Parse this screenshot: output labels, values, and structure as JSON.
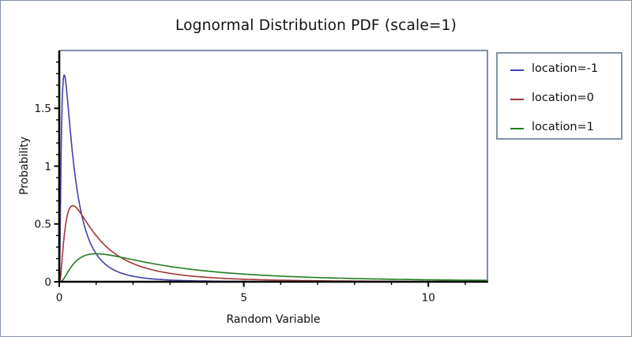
{
  "chart_data": {
    "type": "line",
    "title": "Lognormal Distribution PDF (scale=1)",
    "xlabel": "Random Variable",
    "ylabel": "Probability",
    "xlim": [
      0,
      11.6
    ],
    "ylim": [
      0,
      2
    ],
    "grid": false,
    "legend_position": "outside-right",
    "distribution": "lognormal_pdf",
    "scale_sigma": 1,
    "x_major_ticks": [
      {
        "value": 0,
        "label": "0"
      },
      {
        "value": 5,
        "label": "5"
      },
      {
        "value": 10,
        "label": "10"
      }
    ],
    "x_minor_tick_step": 1,
    "y_major_ticks": [
      {
        "value": 0,
        "label": "0"
      },
      {
        "value": 0.5,
        "label": "0.5"
      },
      {
        "value": 1,
        "label": "1"
      },
      {
        "value": 1.5,
        "label": "1.5"
      }
    ],
    "y_minor_tick_step": 0.1,
    "series": [
      {
        "label": "location=-1",
        "location": -1,
        "sigma": 1,
        "color": "#3f3fae",
        "peak": {
          "x": 0.14,
          "y": 1.79
        },
        "sample_points": [
          {
            "x": 0.05,
            "y": 1.08
          },
          {
            "x": 0.1,
            "y": 1.707
          },
          {
            "x": 0.25,
            "y": 1.481
          },
          {
            "x": 0.5,
            "y": 0.761
          },
          {
            "x": 1,
            "y": 0.242
          },
          {
            "x": 1.5,
            "y": 0.099
          },
          {
            "x": 2,
            "y": 0.048
          },
          {
            "x": 3,
            "y": 0.015
          },
          {
            "x": 4,
            "y": 0.006
          },
          {
            "x": 5,
            "y": 0.003
          },
          {
            "x": 6,
            "y": 0.001
          },
          {
            "x": 8,
            "y": 0.0004
          },
          {
            "x": 10,
            "y": 0.0002
          }
        ]
      },
      {
        "label": "location=0",
        "location": 0,
        "sigma": 1,
        "color": "#a33535",
        "peak": {
          "x": 0.37,
          "y": 0.66
        },
        "sample_points": [
          {
            "x": 0.05,
            "y": 0.09
          },
          {
            "x": 0.1,
            "y": 0.281
          },
          {
            "x": 0.25,
            "y": 0.61
          },
          {
            "x": 0.5,
            "y": 0.628
          },
          {
            "x": 1,
            "y": 0.399
          },
          {
            "x": 1.5,
            "y": 0.245
          },
          {
            "x": 2,
            "y": 0.157
          },
          {
            "x": 3,
            "y": 0.073
          },
          {
            "x": 4,
            "y": 0.038
          },
          {
            "x": 5,
            "y": 0.022
          },
          {
            "x": 6,
            "y": 0.013
          },
          {
            "x": 8,
            "y": 0.006
          },
          {
            "x": 10,
            "y": 0.003
          }
        ]
      },
      {
        "label": "location=1",
        "location": 1,
        "sigma": 1,
        "color": "#217d21",
        "peak": {
          "x": 1.0,
          "y": 0.24
        },
        "sample_points": [
          {
            "x": 0.1,
            "y": 0.017
          },
          {
            "x": 0.25,
            "y": 0.093
          },
          {
            "x": 0.5,
            "y": 0.19
          },
          {
            "x": 1,
            "y": 0.242
          },
          {
            "x": 1.5,
            "y": 0.223
          },
          {
            "x": 2,
            "y": 0.19
          },
          {
            "x": 3,
            "y": 0.132
          },
          {
            "x": 4,
            "y": 0.093
          },
          {
            "x": 5,
            "y": 0.066
          },
          {
            "x": 6,
            "y": 0.049
          },
          {
            "x": 8,
            "y": 0.028
          },
          {
            "x": 10,
            "y": 0.017
          }
        ]
      }
    ],
    "colors": {
      "frame": "#7e90a8",
      "axis": "#000000",
      "tick_text": "#111111",
      "background": "#ffffff"
    }
  }
}
